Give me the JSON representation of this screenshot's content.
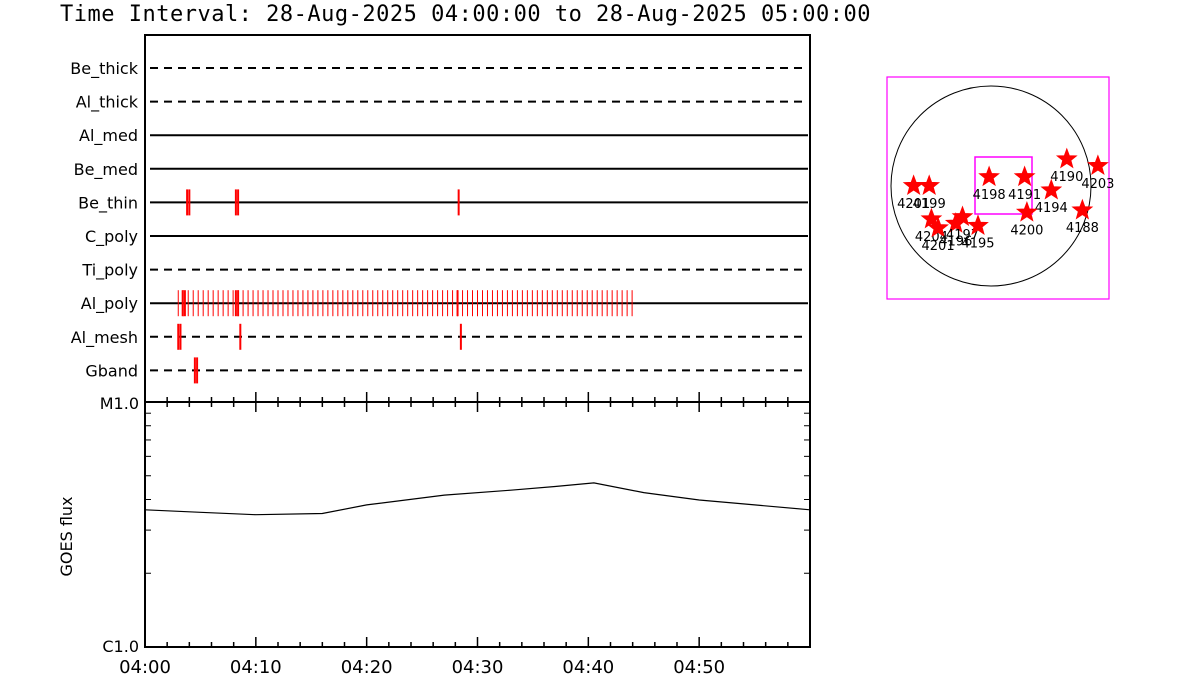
{
  "title": "Time Interval: 28-Aug-2025 04:00:00 to 28-Aug-2025 05:00:00",
  "colors": {
    "event": "#ff0000",
    "axis": "#000000",
    "box": "#ff00ff"
  },
  "chart_data": [
    {
      "type": "event-timeline",
      "x_unit": "minutes after 04:00",
      "xlim": [
        0,
        60
      ],
      "channels": [
        {
          "name": "Be_thick",
          "line": "dashed",
          "events": []
        },
        {
          "name": "Al_thick",
          "line": "dashed",
          "events": []
        },
        {
          "name": "Al_med",
          "line": "solid",
          "events": []
        },
        {
          "name": "Be_med",
          "line": "solid",
          "events": []
        },
        {
          "name": "Be_thin",
          "line": "solid",
          "events": [
            3.8,
            4.0,
            8.2,
            8.4,
            28.3
          ]
        },
        {
          "name": "C_poly",
          "line": "solid",
          "events": []
        },
        {
          "name": "Ti_poly",
          "line": "dashed",
          "events": []
        },
        {
          "name": "Al_poly",
          "line": "solid",
          "dense_from": 3.0,
          "dense_to": 44.2,
          "dense_step": 0.45,
          "emphasis": [
            3.4,
            3.6,
            8.2,
            8.4,
            28.2
          ]
        },
        {
          "name": "Al_mesh",
          "line": "dashed",
          "events": [
            3.0,
            3.2,
            8.6,
            28.5
          ]
        },
        {
          "name": "Gband",
          "line": "dashed",
          "events": [
            4.5,
            4.7
          ]
        }
      ]
    },
    {
      "type": "line",
      "ylabel": "GOES flux",
      "y_scale": "log",
      "ylim_labels": [
        "C1.0",
        "M1.0"
      ],
      "x_ticklabels": [
        "04:00",
        "04:10",
        "04:20",
        "04:30",
        "04:40",
        "04:50"
      ],
      "x": [
        0,
        5,
        10,
        16,
        20,
        27,
        33,
        37,
        40.5,
        45,
        50,
        55,
        60
      ],
      "y": [
        0.56,
        0.55,
        0.54,
        0.545,
        0.58,
        0.62,
        0.64,
        0.655,
        0.67,
        0.63,
        0.6,
        0.58,
        0.56
      ]
    },
    {
      "type": "scatter",
      "subtitle": "",
      "points": [
        {
          "label": "4198",
          "x": 0.46,
          "y": 0.45
        },
        {
          "label": "4191",
          "x": 0.62,
          "y": 0.45
        },
        {
          "label": "4190",
          "x": 0.81,
          "y": 0.37
        },
        {
          "label": "4203",
          "x": 0.95,
          "y": 0.4
        },
        {
          "label": "4194",
          "x": 0.74,
          "y": 0.51
        },
        {
          "label": "4188",
          "x": 0.88,
          "y": 0.6
        },
        {
          "label": "4200",
          "x": 0.63,
          "y": 0.61
        },
        {
          "label": "4201",
          "x": 0.12,
          "y": 0.49
        },
        {
          "label": "4199",
          "x": 0.19,
          "y": 0.49
        },
        {
          "label": "4204",
          "x": 0.2,
          "y": 0.64
        },
        {
          "label": "4201",
          "x": 0.23,
          "y": 0.68
        },
        {
          "label": "4196",
          "x": 0.31,
          "y": 0.66
        },
        {
          "label": "4197",
          "x": 0.34,
          "y": 0.63
        },
        {
          "label": "4195",
          "x": 0.41,
          "y": 0.67
        }
      ]
    }
  ]
}
